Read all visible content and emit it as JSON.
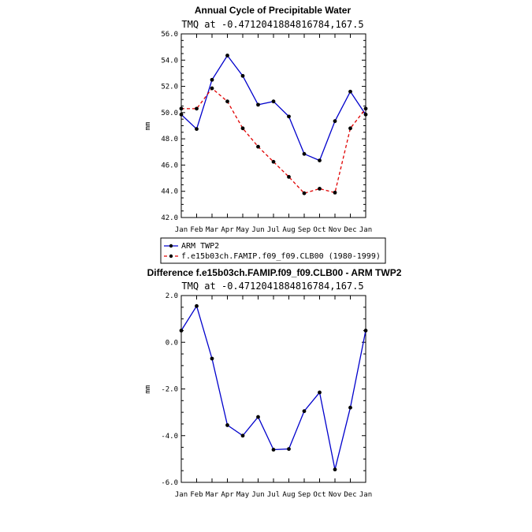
{
  "chart_data": [
    {
      "type": "line",
      "title": "Annual Cycle of Precipitable Water",
      "subtitle": "TMQ at -0.4712041884816784,167.5",
      "ylabel": "mm",
      "xlabel": "",
      "ylim": [
        42.0,
        56.0
      ],
      "yticks": [
        "42.0",
        "44.0",
        "46.0",
        "48.0",
        "50.0",
        "52.0",
        "54.0",
        "56.0"
      ],
      "yticks_values": [
        42,
        44,
        46,
        48,
        50,
        52,
        54,
        56
      ],
      "categories": [
        "Jan",
        "Feb",
        "Mar",
        "Apr",
        "May",
        "Jun",
        "Jul",
        "Aug",
        "Sep",
        "Oct",
        "Nov",
        "Dec",
        "Jan"
      ],
      "series": [
        {
          "name": "ARM TWP2",
          "color": "#0000cc",
          "dash": "solid",
          "values": [
            49.85,
            48.75,
            52.5,
            54.35,
            52.8,
            50.6,
            50.85,
            49.7,
            46.85,
            46.35,
            49.35,
            51.6,
            49.85
          ]
        },
        {
          "name": "f.e15b03ch.FAMIP.f09_f09.CLB00 (1980-1999)",
          "color": "#e00000",
          "dash": "dashed",
          "values": [
            50.3,
            50.3,
            51.85,
            50.85,
            48.8,
            47.4,
            46.25,
            45.1,
            43.85,
            44.2,
            43.9,
            48.8,
            50.3
          ]
        }
      ]
    },
    {
      "type": "line",
      "title": "Difference f.e15b03ch.FAMIP.f09_f09.CLB00 - ARM TWP2",
      "subtitle": "TMQ at -0.4712041884816784,167.5",
      "ylabel": "mm",
      "xlabel": "",
      "ylim": [
        -6.0,
        2.0
      ],
      "yticks": [
        "-6.0",
        "-4.0",
        "-2.0",
        "0.0",
        "2.0"
      ],
      "yticks_values": [
        -6,
        -4,
        -2,
        0,
        2
      ],
      "categories": [
        "Jan",
        "Feb",
        "Mar",
        "Apr",
        "May",
        "Jun",
        "Jul",
        "Aug",
        "Sep",
        "Oct",
        "Nov",
        "Dec",
        "Jan"
      ],
      "series": [
        {
          "name": "Difference",
          "color": "#0000cc",
          "dash": "solid",
          "values": [
            0.5,
            1.55,
            -0.7,
            -3.55,
            -4.0,
            -3.2,
            -4.6,
            -4.57,
            -2.95,
            -2.15,
            -5.45,
            -2.8,
            0.5
          ]
        }
      ]
    }
  ]
}
